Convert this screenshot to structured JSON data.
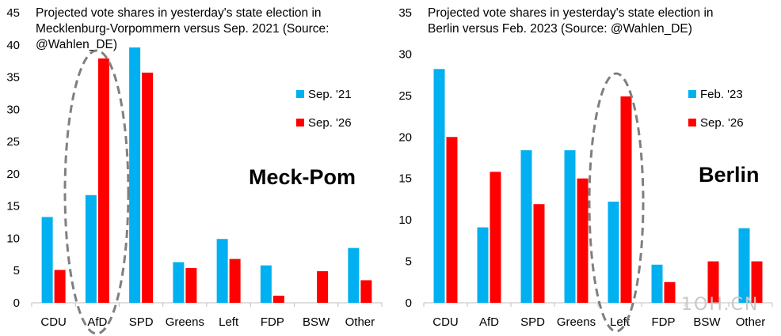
{
  "chart_data": [
    {
      "type": "bar",
      "title_lines": [
        "Projected vote shares in yesterday's state election in",
        "Mecklenburg-Vorpommern versus Sep. 2021 (Source:",
        "@Wahlen_DE)"
      ],
      "categories": [
        "CDU",
        "AfD",
        "SPD",
        "Greens",
        "Left",
        "FDP",
        "BSW",
        "Other"
      ],
      "series": [
        {
          "name": "Sep. '21",
          "color": "#00b0f0",
          "values": [
            13.3,
            16.7,
            39.6,
            6.3,
            9.9,
            5.8,
            null,
            8.5
          ]
        },
        {
          "name": "Sep. '26",
          "color": "#ff0000",
          "values": [
            5.1,
            37.9,
            35.7,
            5.4,
            6.8,
            1.1,
            4.9,
            3.5
          ]
        }
      ],
      "ylim": [
        0,
        45
      ],
      "yticks": [
        0,
        5,
        10,
        15,
        20,
        25,
        30,
        35,
        40,
        45
      ],
      "annotation": "Meck-Pom",
      "highlight": "AfD",
      "legend_position": "right"
    },
    {
      "type": "bar",
      "title_lines": [
        "Projected vote shares in yesterday's state election in",
        "Berlin versus Feb. 2023 (Source: @Wahlen_DE)"
      ],
      "categories": [
        "CDU",
        "AfD",
        "SPD",
        "Greens",
        "Left",
        "FDP",
        "BSW",
        "Other"
      ],
      "series": [
        {
          "name": "Feb. '23",
          "color": "#00b0f0",
          "values": [
            28.2,
            9.1,
            18.4,
            18.4,
            12.2,
            4.6,
            null,
            9.0
          ]
        },
        {
          "name": "Sep. '26",
          "color": "#ff0000",
          "values": [
            20.0,
            15.8,
            11.9,
            15.0,
            24.9,
            2.5,
            5.0,
            5.0
          ]
        }
      ],
      "ylim": [
        0,
        35
      ],
      "yticks": [
        0,
        5,
        10,
        15,
        20,
        25,
        30,
        35
      ],
      "annotation": "Berlin",
      "highlight": "Left",
      "legend_position": "right"
    }
  ],
  "watermark": "1OH.CN"
}
